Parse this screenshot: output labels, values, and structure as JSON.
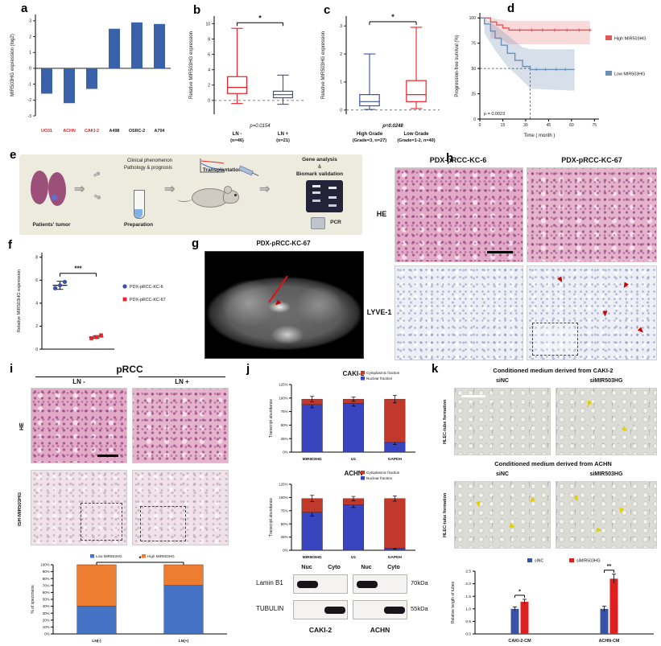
{
  "panels": {
    "a": "a",
    "b": "b",
    "c": "c",
    "d": "d",
    "e": "e",
    "f": "f",
    "g": "g",
    "h": "h",
    "i": "i",
    "j": "j",
    "k": "k"
  },
  "icons": {
    "flow_arrow": "⇒"
  },
  "panel_e": {
    "patients_tumor": "Patients' tumor",
    "clinical_1": "Clinical phenomenon",
    "clinical_2": "Pathology  & prognosis",
    "preparation": "Preparation",
    "transplantation": "Transplantation",
    "gene_1": "Gene analysis",
    "gene_2": "&",
    "gene_3": "Biomark validation",
    "pcr": "PCR"
  },
  "panel_g": {
    "title": "PDX-pRCC-KC-67"
  },
  "panel_h": {
    "col1": "PDX-pRCC-KC-6",
    "col2": "PDX-pRCC-KC-67",
    "row1": "HE",
    "row2": "LYVE-1"
  },
  "panel_i": {
    "title": "pRCC",
    "col1": "LN -",
    "col2": "LN +",
    "row1": "HE",
    "row2": "ISH-MIR503HG"
  },
  "panel_j": {
    "blot_row1": "Lamin B1",
    "blot_row2": "TUBULIN",
    "lane_nuc": "Nuc",
    "lane_cyto": "Cyto",
    "kda1": "70kDa",
    "kda2": "55kDa",
    "cell1": "CAKI-2",
    "cell2": "ACHN"
  },
  "panel_k": {
    "title1": "Conditioned medium derived from CAKI-2",
    "title2": "Conditioned medium derived from ACHN",
    "col1": "siNC",
    "col2": "siMIR503HG",
    "row_label": "HLEC-tube formation"
  },
  "chart_data": [
    {
      "id": "a",
      "type": "bar",
      "ylabel": "MIR503HG expression (log2)",
      "categories": [
        "UO31",
        "ACHN",
        "CAKI-2",
        "A498",
        "OSRC-2",
        "A704"
      ],
      "values": [
        -1.6,
        -2.2,
        -1.3,
        2.5,
        2.9,
        2.8
      ],
      "category_colors": [
        "#D92627",
        "#D92627",
        "#D92627",
        "#1a1a1a",
        "#1a1a1a",
        "#1a1a1a"
      ],
      "bar_color": "#3A62AA",
      "ylim": [
        -3,
        3.4
      ],
      "yticks": [
        -3,
        -2,
        -1,
        0,
        1,
        2,
        3
      ]
    },
    {
      "id": "b",
      "type": "box",
      "ylabel": "Relative MIR503HG expression",
      "ylim": [
        -1.8,
        11
      ],
      "yticks": [
        0,
        2,
        4,
        6,
        8,
        10
      ],
      "p_label": "p=0.0154",
      "p_bold": false,
      "sig": "*",
      "zero_dashed": true,
      "items": [
        {
          "label": "LN -",
          "sub": "(n=46)",
          "color": "#EC2027",
          "lo": -0.4,
          "q1": 0.9,
          "med": 1.7,
          "q3": 3.1,
          "hi": 9.4
        },
        {
          "label": "LN +",
          "sub": "(n=21)",
          "color": "#3853A4",
          "lo": -0.5,
          "q1": 0.35,
          "med": 0.75,
          "q3": 1.2,
          "hi": 3.3
        }
      ]
    },
    {
      "id": "c",
      "type": "box",
      "ylabel": "Relative MIR503HG expression",
      "ylim": [
        -0.15,
        3.35
      ],
      "yticks": [
        0,
        1,
        2,
        3
      ],
      "p_label": "p=0.0248",
      "p_bold": true,
      "sig": "*",
      "zero_dashed": true,
      "items": [
        {
          "label": "High Grade",
          "sub": "(Grade=3, n=27)",
          "color": "#3853A4",
          "lo": 0.02,
          "q1": 0.15,
          "med": 0.3,
          "q3": 0.55,
          "hi": 2.0
        },
        {
          "label": "Low Grade",
          "sub": "(Grade=1-2, n=40)",
          "color": "#EC2027",
          "lo": 0.05,
          "q1": 0.3,
          "med": 0.55,
          "q3": 1.05,
          "hi": 2.95
        }
      ]
    },
    {
      "id": "d",
      "type": "km",
      "ylabel": "Progression-free survival (%)",
      "xlabel": "Time ( month )",
      "p_label": "p = 0.0023",
      "xlim": [
        0,
        78
      ],
      "xticks": [
        0,
        15,
        30,
        45,
        60,
        75
      ],
      "ylim": [
        0,
        105
      ],
      "yticks": [
        0,
        25,
        50,
        75,
        100
      ],
      "ref": {
        "x": 33,
        "y": 50
      },
      "series": [
        {
          "name": "High MIR503HG",
          "color": "#E15759",
          "band_color": "rgba(225,87,89,0.22)",
          "drops": [
            [
              7,
              96
            ],
            [
              11,
              93
            ],
            [
              15,
              90
            ],
            [
              19,
              88
            ]
          ],
          "end": 72,
          "censors": [
            [
              26,
              88
            ],
            [
              34,
              88
            ],
            [
              41,
              88
            ],
            [
              49,
              88
            ],
            [
              57,
              88
            ],
            [
              65,
              88
            ],
            [
              72,
              88
            ]
          ],
          "band": [
            [
              7,
              80,
              100
            ],
            [
              15,
              78,
              98
            ],
            [
              19,
              74,
              97
            ],
            [
              72,
              74,
              97
            ]
          ]
        },
        {
          "name": "Low MIR503HG",
          "color": "#6E8FB5",
          "band_color": "rgba(110,143,181,0.28)",
          "drops": [
            [
              3,
              94
            ],
            [
              7,
              87
            ],
            [
              10,
              80
            ],
            [
              14,
              73
            ],
            [
              18,
              65
            ],
            [
              23,
              58
            ],
            [
              28,
              52
            ],
            [
              33,
              49
            ]
          ],
          "end": 62,
          "censors": [
            [
              37,
              49
            ],
            [
              43,
              49
            ],
            [
              50,
              49
            ],
            [
              56,
              49
            ]
          ],
          "band": [
            [
              3,
              85,
              100
            ],
            [
              10,
              68,
              93
            ],
            [
              18,
              52,
              83
            ],
            [
              28,
              38,
              71
            ],
            [
              33,
              30,
              69
            ],
            [
              62,
              28,
              69
            ]
          ]
        }
      ]
    },
    {
      "id": "f",
      "type": "dots",
      "ylabel": "Relative MIR503HG expression",
      "ylim": [
        0,
        8.4
      ],
      "yticks": [
        0,
        2,
        4,
        6,
        8
      ],
      "sig": "***",
      "groups": [
        {
          "name": "PDX-pRCC-KC-6",
          "color": "#3853A4",
          "marker": "circle",
          "values": [
            5.3,
            5.55,
            5.85
          ],
          "mean": 5.55,
          "err": 0.35
        },
        {
          "name": "PDX-pRCC-KC-67",
          "color": "#EC2027",
          "marker": "square",
          "values": [
            0.95,
            1.05,
            1.2
          ],
          "mean": 1.05,
          "err": 0.12
        }
      ]
    },
    {
      "id": "i_chart",
      "type": "stacked",
      "ylabel": "% of specimens",
      "categories": [
        "LN(-)",
        "LN(+)"
      ],
      "series": [
        {
          "name": "Low MIR503HG",
          "color": "#4472C4",
          "values": [
            40,
            70
          ]
        },
        {
          "name": "High MIR503HG",
          "color": "#ED7D31",
          "values": [
            60,
            30
          ]
        }
      ],
      "ymax": 100,
      "ytick_step": 10,
      "tick_suffix": "%",
      "sig": "*",
      "legend_pos": "top-center",
      "bar_rel_width": 0.45
    },
    {
      "id": "j_caki2",
      "type": "stacked",
      "title": "CAKI-2",
      "ylabel": "Transcript abundance",
      "categories": [
        "MIR503HG",
        "U1",
        "GAPDH"
      ],
      "series": [
        {
          "name": "Nuclear fraction",
          "color": "#3944BF",
          "values": [
            88,
            90,
            18
          ],
          "errs": [
            6,
            5,
            4
          ]
        },
        {
          "name": "Cytoplasmic fraction",
          "color": "#C0392B",
          "values": [
            10,
            8,
            80
          ],
          "errs": [
            5,
            4,
            7
          ]
        }
      ],
      "ymax": 125,
      "ytick_step": 25,
      "tick_suffix": "%",
      "legend_pos": "top-right",
      "legend_reverse": true,
      "bar_rel_width": 0.5
    },
    {
      "id": "j_achn",
      "type": "stacked",
      "title": "ACHN",
      "ylabel": "Transcript abundance",
      "categories": [
        "MIR503HG",
        "U1",
        "GAPDH"
      ],
      "series": [
        {
          "name": "Nuclear fraction",
          "color": "#3944BF",
          "values": [
            72,
            86,
            4
          ],
          "errs": [
            7,
            5,
            2
          ]
        },
        {
          "name": "Cytoplasmic fraction",
          "color": "#C0392B",
          "values": [
            26,
            12,
            94
          ],
          "errs": [
            6,
            4,
            5
          ]
        }
      ],
      "ymax": 125,
      "ytick_step": 25,
      "tick_suffix": "%",
      "legend_pos": "top-right",
      "legend_reverse": true,
      "bar_rel_width": 0.5
    },
    {
      "id": "k_chart",
      "type": "grouped",
      "ylabel": "Relative length of tubes",
      "categories": [
        "CAKI-2-CM",
        "ACHN-CM"
      ],
      "series": [
        {
          "name": "siNC",
          "color": "#3853A4",
          "values": [
            1.0,
            1.0
          ],
          "errs": [
            0.08,
            0.1
          ]
        },
        {
          "name": "siMIR503HG",
          "color": "#E02020",
          "values": [
            1.28,
            2.2
          ],
          "errs": [
            0.1,
            0.18
          ]
        }
      ],
      "ymax": 2.5,
      "yticks": [
        0,
        0.5,
        1.0,
        1.5,
        2.0,
        2.5
      ],
      "sigs": [
        "*",
        "**"
      ]
    }
  ]
}
